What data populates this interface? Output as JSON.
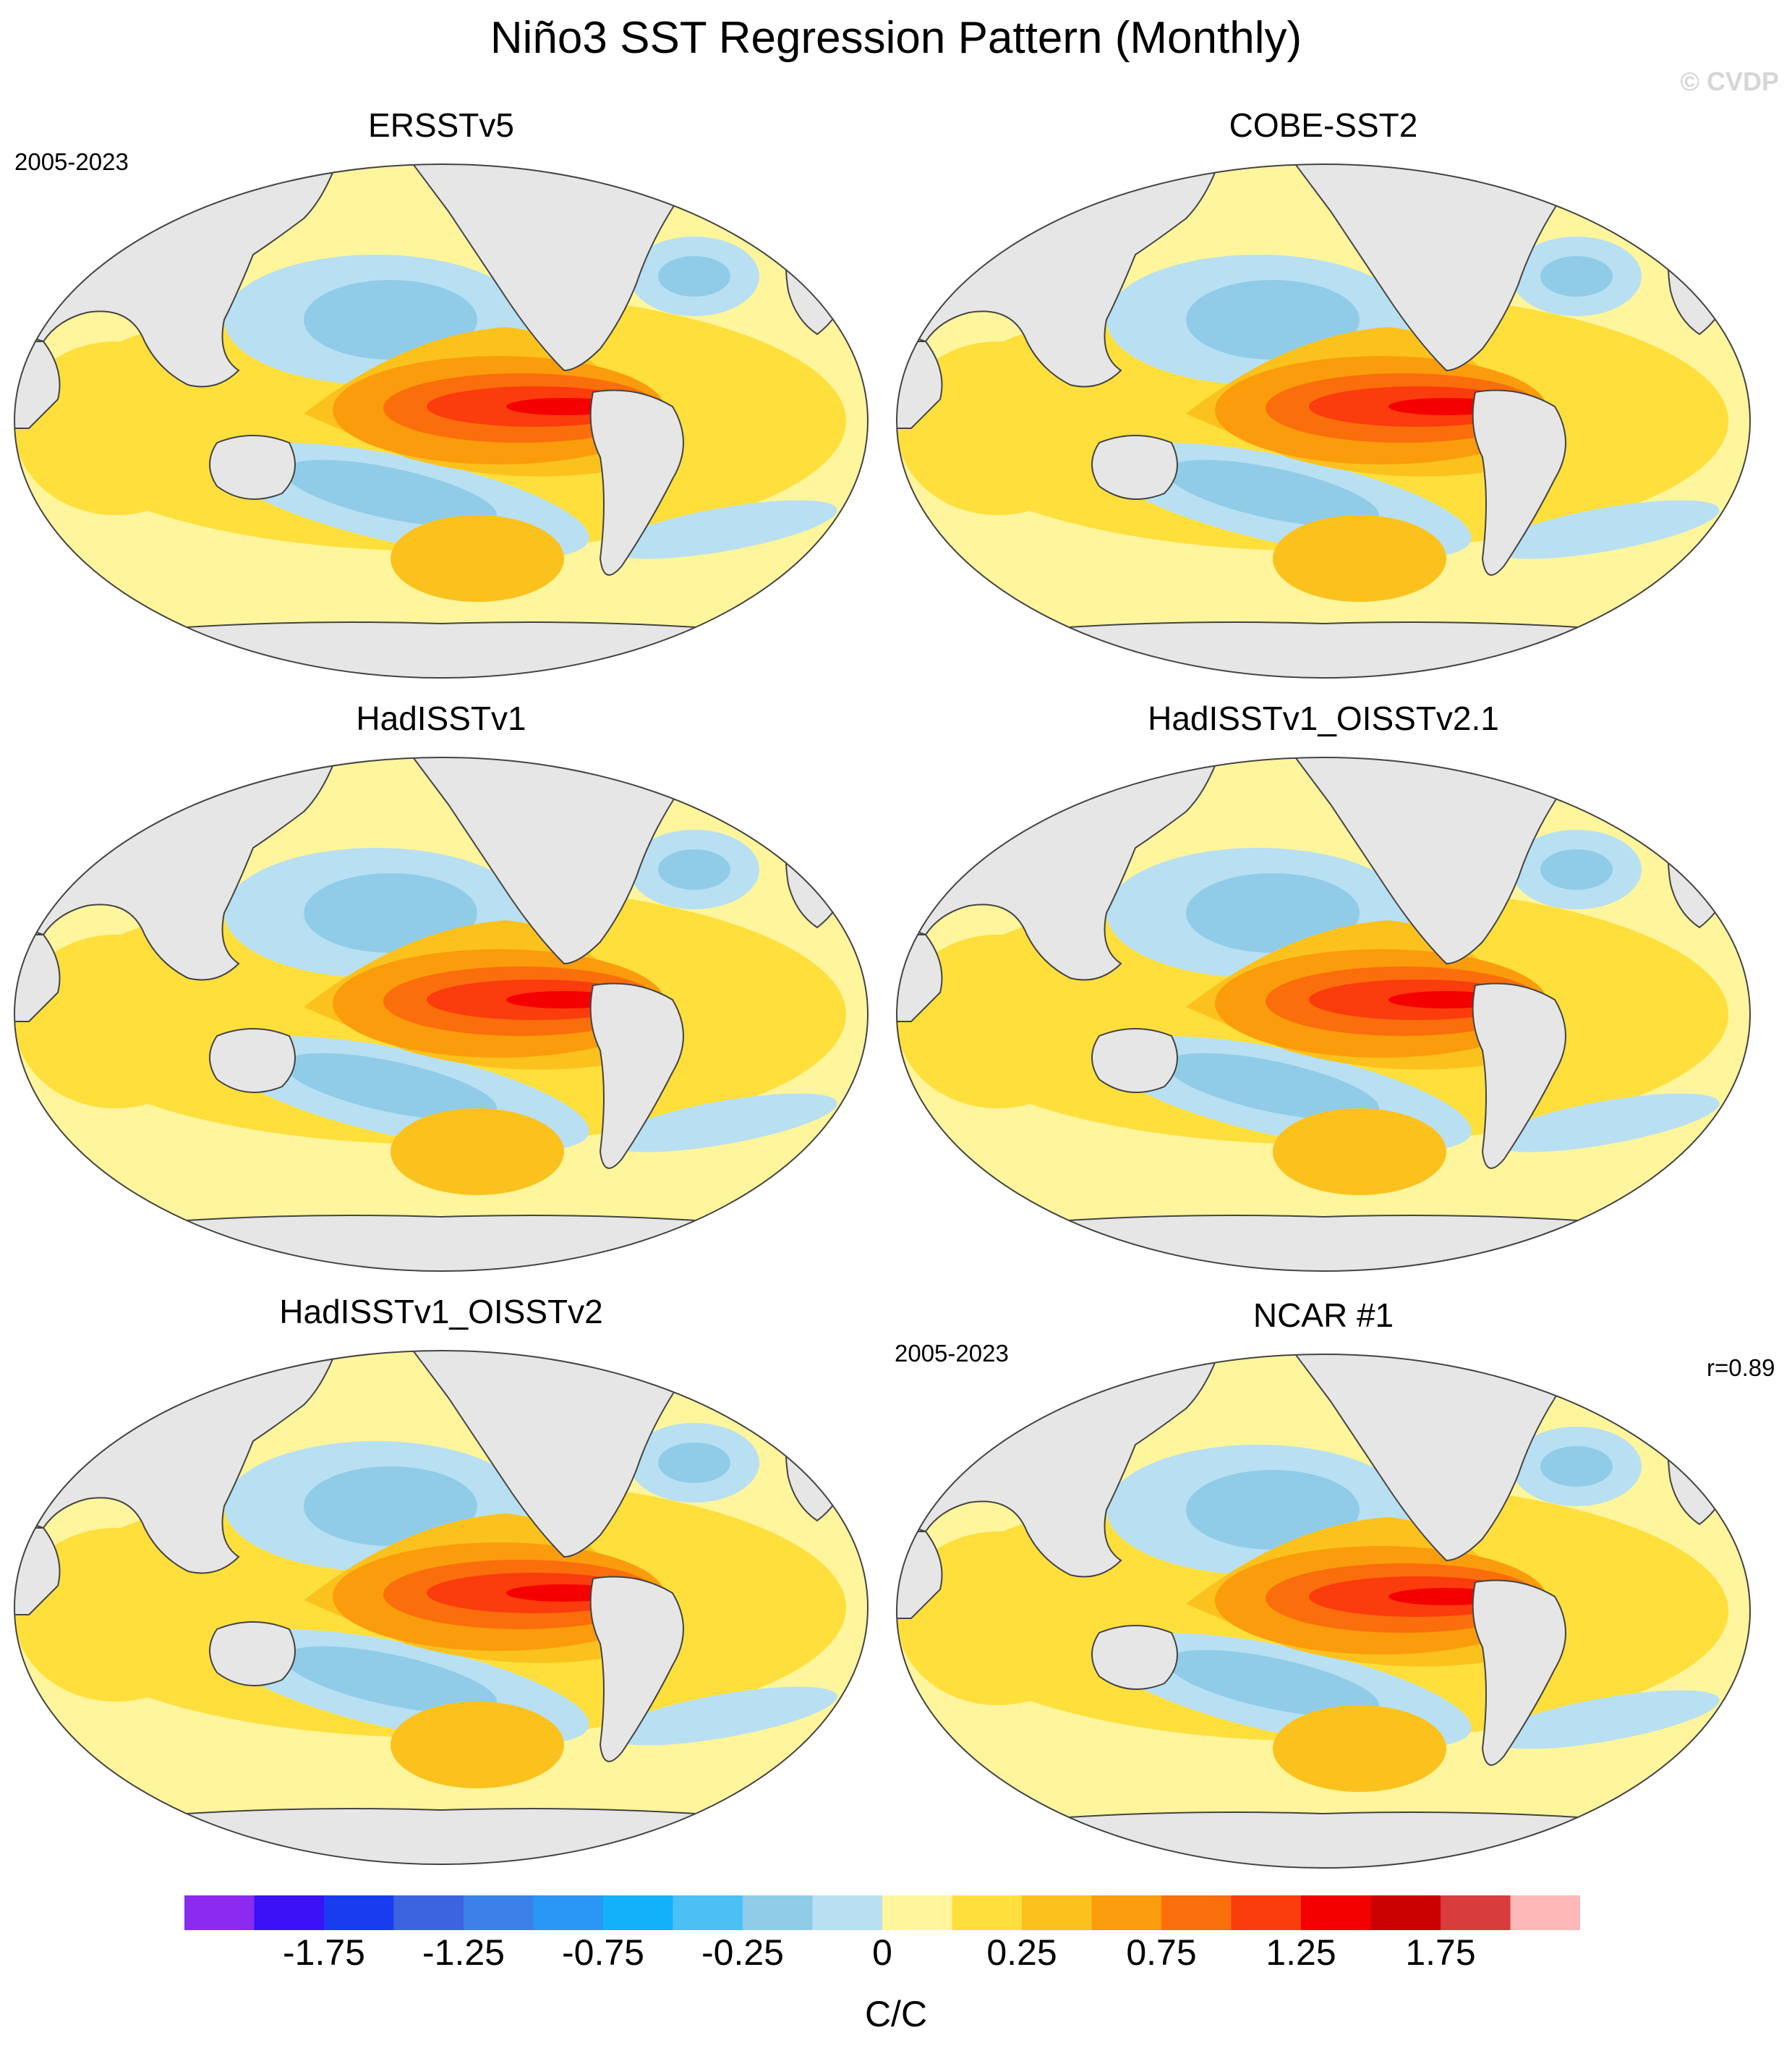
{
  "title": "Niño3 SST Regression Pattern (Monthly)",
  "watermark": "© CVDP",
  "panels": [
    {
      "title": "ERSSTv5",
      "left_label": "2005-2023",
      "right_label": ""
    },
    {
      "title": "COBE-SST2",
      "left_label": "",
      "right_label": ""
    },
    {
      "title": "HadISSTv1",
      "left_label": "",
      "right_label": ""
    },
    {
      "title": "HadISSTv1_OISSTv2.1",
      "left_label": "",
      "right_label": ""
    },
    {
      "title": "HadISSTv1_OISSTv2",
      "left_label": "",
      "right_label": ""
    },
    {
      "title": "NCAR #1",
      "left_label": "2005-2023",
      "right_label": "r=0.89"
    }
  ],
  "colorbar": {
    "colors": [
      "#8b2bf0",
      "#3a12f5",
      "#1a3cf0",
      "#3c64e0",
      "#3c80ea",
      "#2a96f5",
      "#13b2f8",
      "#4cc0f5",
      "#90cce8",
      "#b8e0f2",
      "#fff59c",
      "#ffdf3c",
      "#fbc21e",
      "#fb9c0c",
      "#fb6e0c",
      "#fb3c0c",
      "#f50000",
      "#cb0000",
      "#d83c3c",
      "#ffb8b8"
    ],
    "tick_labels": [
      "-1.75",
      "-1.25",
      "-0.75",
      "-0.25",
      "0",
      "0.25",
      "0.75",
      "1.25",
      "1.75"
    ],
    "units": "C/C"
  },
  "colors": {
    "land": "#e6e6e6",
    "outline": "#444444"
  }
}
